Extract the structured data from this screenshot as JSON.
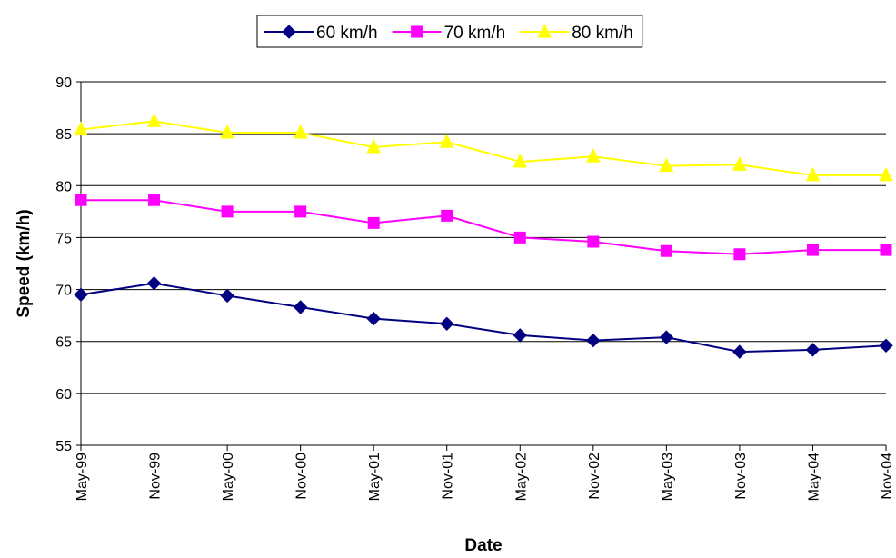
{
  "chart_data": {
    "type": "line",
    "x_label": "Date",
    "y_label": "Speed (km/h)",
    "categories": [
      "May-99",
      "Nov-99",
      "May-00",
      "Nov-00",
      "May-01",
      "Nov-01",
      "May-02",
      "Nov-02",
      "May-03",
      "Nov-03",
      "May-04",
      "Nov-04"
    ],
    "series": [
      {
        "name": "60 km/h",
        "color": "#000080",
        "marker": "diamond",
        "values": [
          69.5,
          70.6,
          69.4,
          68.3,
          67.2,
          66.7,
          65.6,
          65.1,
          65.4,
          64.0,
          64.2,
          64.6
        ]
      },
      {
        "name": "70 km/h",
        "color": "#ff00ff",
        "marker": "square",
        "values": [
          78.6,
          78.6,
          77.5,
          77.5,
          76.4,
          77.1,
          75.0,
          74.6,
          73.7,
          73.4,
          73.8,
          73.8
        ]
      },
      {
        "name": "80 km/h",
        "color": "#ffff00",
        "marker": "triangle",
        "values": [
          85.4,
          86.2,
          85.1,
          85.1,
          83.7,
          84.2,
          82.3,
          82.8,
          81.9,
          82.0,
          81.0,
          81.0
        ]
      }
    ],
    "ylim": [
      55,
      90
    ],
    "yticks": [
      55,
      60,
      65,
      70,
      75,
      80,
      85,
      90
    ],
    "grid": true,
    "legend": "top"
  }
}
